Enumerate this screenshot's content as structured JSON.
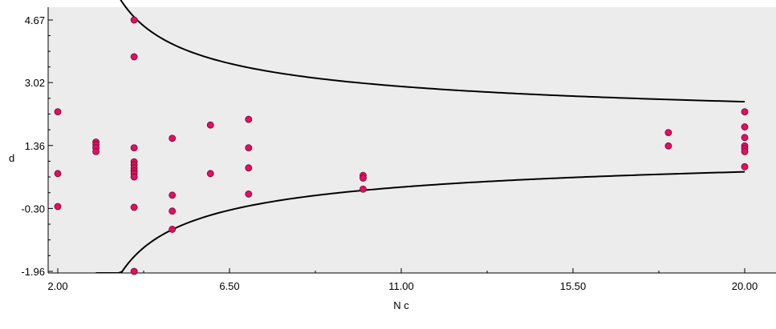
{
  "chart_data": {
    "type": "scatter",
    "title": "",
    "xlabel": "N c",
    "ylabel": "d",
    "xlim": [
      2.0,
      20.0
    ],
    "ylim": [
      -1.96,
      5.1
    ],
    "xticks": [
      2.0,
      6.5,
      11.0,
      15.5,
      20.0
    ],
    "xtick_labels": [
      "2.00",
      "6.50",
      "11.00",
      "15.50",
      "20.00"
    ],
    "yticks": [
      -1.96,
      -0.3,
      1.36,
      3.02,
      4.67
    ],
    "ytick_labels": [
      "-1.96",
      "-0.30",
      "1.36",
      "3.02",
      "4.67"
    ],
    "grid": false,
    "colors": {
      "plot_background": "#ececec",
      "point_fill": "#e0115f",
      "point_stroke": "#7a0030",
      "curve": "#000000"
    },
    "points": [
      {
        "x": 2.0,
        "y": 2.25
      },
      {
        "x": 2.0,
        "y": 0.62
      },
      {
        "x": 2.0,
        "y": -0.25
      },
      {
        "x": 3.0,
        "y": 1.45
      },
      {
        "x": 3.0,
        "y": 1.38
      },
      {
        "x": 3.0,
        "y": 1.3
      },
      {
        "x": 3.0,
        "y": 1.2
      },
      {
        "x": 4.0,
        "y": 4.67
      },
      {
        "x": 4.0,
        "y": 3.7
      },
      {
        "x": 4.0,
        "y": 1.3
      },
      {
        "x": 4.0,
        "y": 0.93
      },
      {
        "x": 4.0,
        "y": 0.85
      },
      {
        "x": 4.0,
        "y": 0.77
      },
      {
        "x": 4.0,
        "y": 0.69
      },
      {
        "x": 4.0,
        "y": 0.62
      },
      {
        "x": 4.0,
        "y": 0.53
      },
      {
        "x": 4.0,
        "y": -0.27
      },
      {
        "x": 4.0,
        "y": -1.96
      },
      {
        "x": 5.0,
        "y": 1.55
      },
      {
        "x": 5.0,
        "y": 0.05
      },
      {
        "x": 5.0,
        "y": -0.37
      },
      {
        "x": 5.0,
        "y": -0.85
      },
      {
        "x": 6.0,
        "y": 1.9
      },
      {
        "x": 6.0,
        "y": 0.62
      },
      {
        "x": 7.0,
        "y": 2.05
      },
      {
        "x": 7.0,
        "y": 1.3
      },
      {
        "x": 7.0,
        "y": 0.77
      },
      {
        "x": 7.0,
        "y": 0.08
      },
      {
        "x": 10.0,
        "y": 0.57
      },
      {
        "x": 10.0,
        "y": 0.5
      },
      {
        "x": 10.0,
        "y": 0.21
      },
      {
        "x": 18.0,
        "y": 1.7
      },
      {
        "x": 18.0,
        "y": 1.35
      },
      {
        "x": 20.0,
        "y": 2.25
      },
      {
        "x": 20.0,
        "y": 1.85
      },
      {
        "x": 20.0,
        "y": 1.57
      },
      {
        "x": 20.0,
        "y": 1.35
      },
      {
        "x": 20.0,
        "y": 1.28
      },
      {
        "x": 20.0,
        "y": 1.2
      },
      {
        "x": 20.0,
        "y": 0.8
      }
    ],
    "funnel": {
      "center": 1.59,
      "spread": 3.87,
      "x_start": 3.0,
      "x_end": 20.0
    }
  }
}
